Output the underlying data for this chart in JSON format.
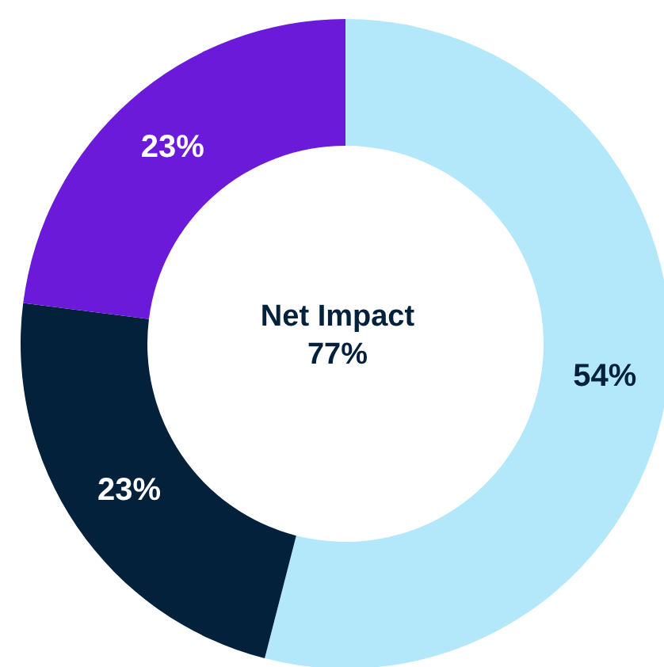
{
  "chart_data": {
    "type": "donut",
    "categories": [
      null,
      null,
      null
    ],
    "values": [
      54,
      23,
      23
    ],
    "colors": [
      "#b3e8fb",
      "#03213b",
      "#6a1ad8"
    ],
    "value_labels": [
      "54%",
      "23%",
      "23%"
    ],
    "annotations": [
      "Net Impact",
      "77%"
    ],
    "legend": false
  }
}
